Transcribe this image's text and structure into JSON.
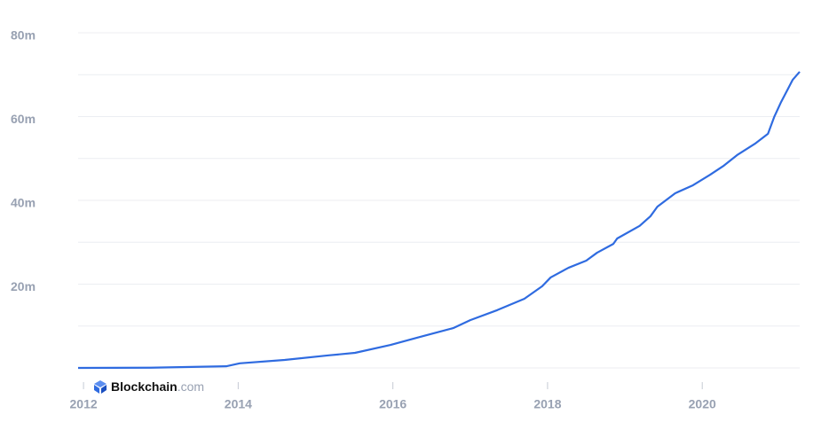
{
  "chart_data": {
    "type": "line",
    "x": [
      2011.93,
      2012.87,
      2013.85,
      2014.02,
      2014.6,
      2015.17,
      2015.51,
      2015.97,
      2016.43,
      2016.78,
      2017.0,
      2017.35,
      2017.7,
      2017.93,
      2018.04,
      2018.27,
      2018.5,
      2018.64,
      2018.85,
      2018.9,
      2019.19,
      2019.33,
      2019.42,
      2019.65,
      2019.88,
      2020.1,
      2020.28,
      2020.45,
      2020.68,
      2020.85,
      2020.93,
      2021.02,
      2021.17,
      2021.26
    ],
    "series": [
      {
        "color": "#2f6be0",
        "values": [
          0,
          0.05,
          0.4,
          1.1,
          1.9,
          3.0,
          3.6,
          5.5,
          7.8,
          9.5,
          11.4,
          13.8,
          16.5,
          19.5,
          21.6,
          23.9,
          25.6,
          27.5,
          29.6,
          30.9,
          33.9,
          36.2,
          38.5,
          41.7,
          43.6,
          46.1,
          48.3,
          50.8,
          53.5,
          55.9,
          59.9,
          63.5,
          68.8,
          70.7
        ]
      }
    ],
    "xlim": [
      2011.93,
      2021.26
    ],
    "xticks": [
      2012,
      2014,
      2016,
      2018,
      2020
    ],
    "ylim": [
      0,
      80
    ],
    "yticks": [
      {
        "value": 20,
        "label": "20m"
      },
      {
        "value": 40,
        "label": "40m"
      },
      {
        "value": 60,
        "label": "60m"
      },
      {
        "value": 80,
        "label": "80m"
      }
    ],
    "minor_yticks": [
      0,
      10,
      30,
      50,
      70
    ],
    "grid": true
  },
  "watermark": {
    "name": "Blockchain",
    "suffix": ".com"
  }
}
